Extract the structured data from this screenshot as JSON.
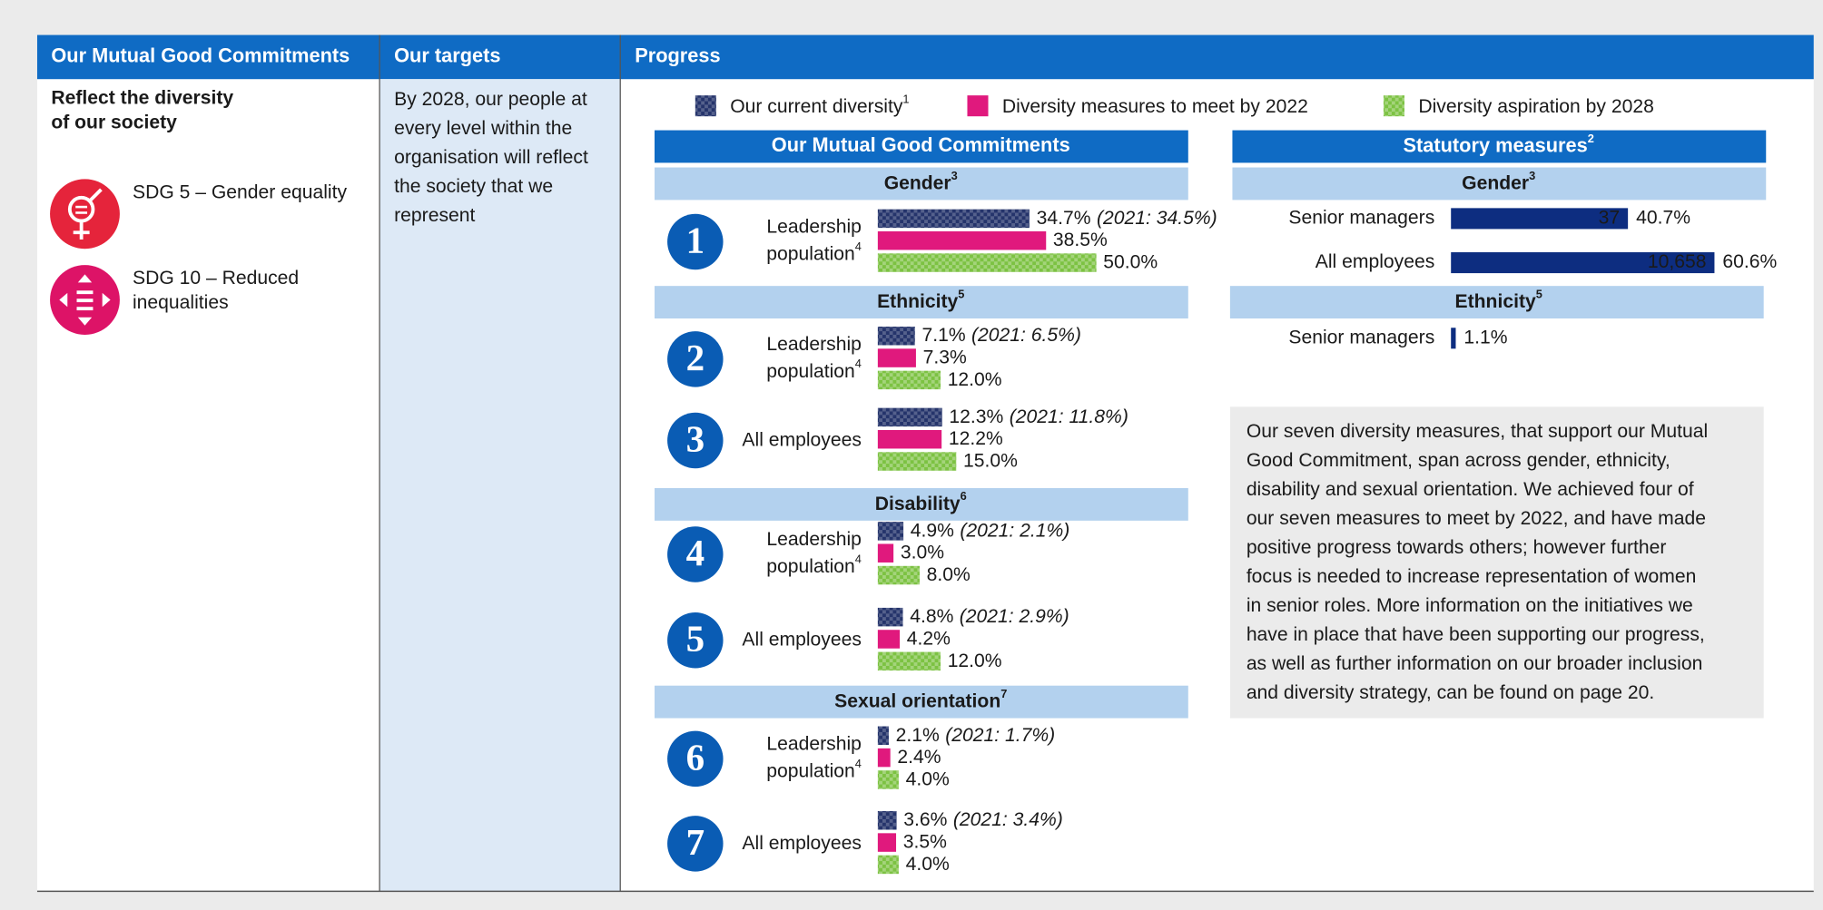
{
  "header": {
    "col1": "Our Mutual Good Commitments",
    "col2": "Our targets",
    "col3": "Progress"
  },
  "commitment": {
    "title_lines": [
      "Reflect the diversity",
      "of our society"
    ],
    "sdgs": [
      {
        "lines": [
          "SDG 5 – Gender equality"
        ],
        "color": "#e5243b"
      },
      {
        "lines": [
          "SDG 10 – Reduced",
          "inequalities"
        ],
        "color": "#dd1367"
      }
    ]
  },
  "targets": {
    "lines": [
      "By 2028, our people at",
      "every level within the",
      "organisation will reflect",
      "the society that we",
      "represent"
    ]
  },
  "legend": [
    {
      "name": "Our current diversity",
      "sup": "1",
      "color": "#25346b"
    },
    {
      "name": "Diversity measures to meet by 2022",
      "color": "#e0197d"
    },
    {
      "name": "Diversity aspiration by 2028",
      "color": "#7cc242"
    }
  ],
  "left_panel": {
    "title": "Our Mutual Good Commitments",
    "sections": [
      {
        "name": "Gender",
        "sup": "3",
        "measures": [
          {
            "number": "1",
            "label_lines": [
              "Leadership",
              "population"
            ],
            "sup": "4",
            "values": [
              34.7,
              38.5,
              50.0
            ],
            "value_labels": [
              "34.7%",
              "38.5%",
              "50.0%"
            ],
            "prior": "(2021: 34.5%)"
          }
        ]
      },
      {
        "name": "Ethnicity",
        "sup": "5",
        "measures": [
          {
            "number": "2",
            "label_lines": [
              "Leadership",
              "population"
            ],
            "sup": "4",
            "values": [
              7.1,
              7.3,
              12.0
            ],
            "value_labels": [
              "7.1%",
              "7.3%",
              "12.0%"
            ],
            "prior": "(2021: 6.5%)"
          },
          {
            "number": "3",
            "label_lines": [
              "All employees"
            ],
            "values": [
              12.3,
              12.2,
              15.0
            ],
            "value_labels": [
              "12.3%",
              "12.2%",
              "15.0%"
            ],
            "prior": "(2021: 11.8%)"
          }
        ]
      },
      {
        "name": "Disability",
        "sup": "6",
        "measures": [
          {
            "number": "4",
            "label_lines": [
              "Leadership",
              "population"
            ],
            "sup": "4",
            "values": [
              4.9,
              3.0,
              8.0
            ],
            "value_labels": [
              "4.9%",
              "3.0%",
              "8.0%"
            ],
            "prior": "(2021: 2.1%)"
          },
          {
            "number": "5",
            "label_lines": [
              "All employees"
            ],
            "values": [
              4.8,
              4.2,
              12.0
            ],
            "value_labels": [
              "4.8%",
              "4.2%",
              "12.0%"
            ],
            "prior": "(2021: 2.9%)"
          }
        ]
      },
      {
        "name": "Sexual orientation",
        "sup": "7",
        "measures": [
          {
            "number": "6",
            "label_lines": [
              "Leadership",
              "population"
            ],
            "sup": "4",
            "values": [
              2.1,
              2.4,
              4.0
            ],
            "value_labels": [
              "2.1%",
              "2.4%",
              "4.0%"
            ],
            "prior": "(2021: 1.7%)"
          },
          {
            "number": "7",
            "label_lines": [
              "All employees"
            ],
            "values": [
              3.6,
              3.5,
              4.0
            ],
            "value_labels": [
              "3.6%",
              "3.5%",
              "4.0%"
            ],
            "prior": "(2021: 3.4%)"
          }
        ]
      }
    ]
  },
  "right_panel": {
    "title": "Statutory measures",
    "sup": "2",
    "color": "#0d2d80",
    "sections": [
      {
        "name": "Gender",
        "sup": "3",
        "rows": [
          {
            "label": "Senior managers",
            "count": "37",
            "value": 40.7,
            "value_label": "40.7%"
          },
          {
            "label": "All employees",
            "count": "10,658",
            "value": 60.6,
            "value_label": "60.6%"
          }
        ]
      },
      {
        "name": "Ethnicity",
        "sup": "5",
        "rows": [
          {
            "label": "Senior managers",
            "value": 1.1,
            "value_label": "1.1%"
          }
        ]
      }
    ]
  },
  "note": {
    "lines": [
      "Our seven diversity measures, that support our Mutual",
      "Good Commitment, span across gender, ethnicity,",
      "disability and sexual orientation. We achieved four of",
      "our seven measures to meet by 2022, and have made",
      "positive progress towards others; however further",
      "focus is needed to increase representation of women",
      "in senior roles. More information on the initiatives we",
      "have in place that have been supporting our progress,",
      "as well as further information on our broader inclusion",
      "and diversity strategy, can be found on page 20."
    ]
  }
}
